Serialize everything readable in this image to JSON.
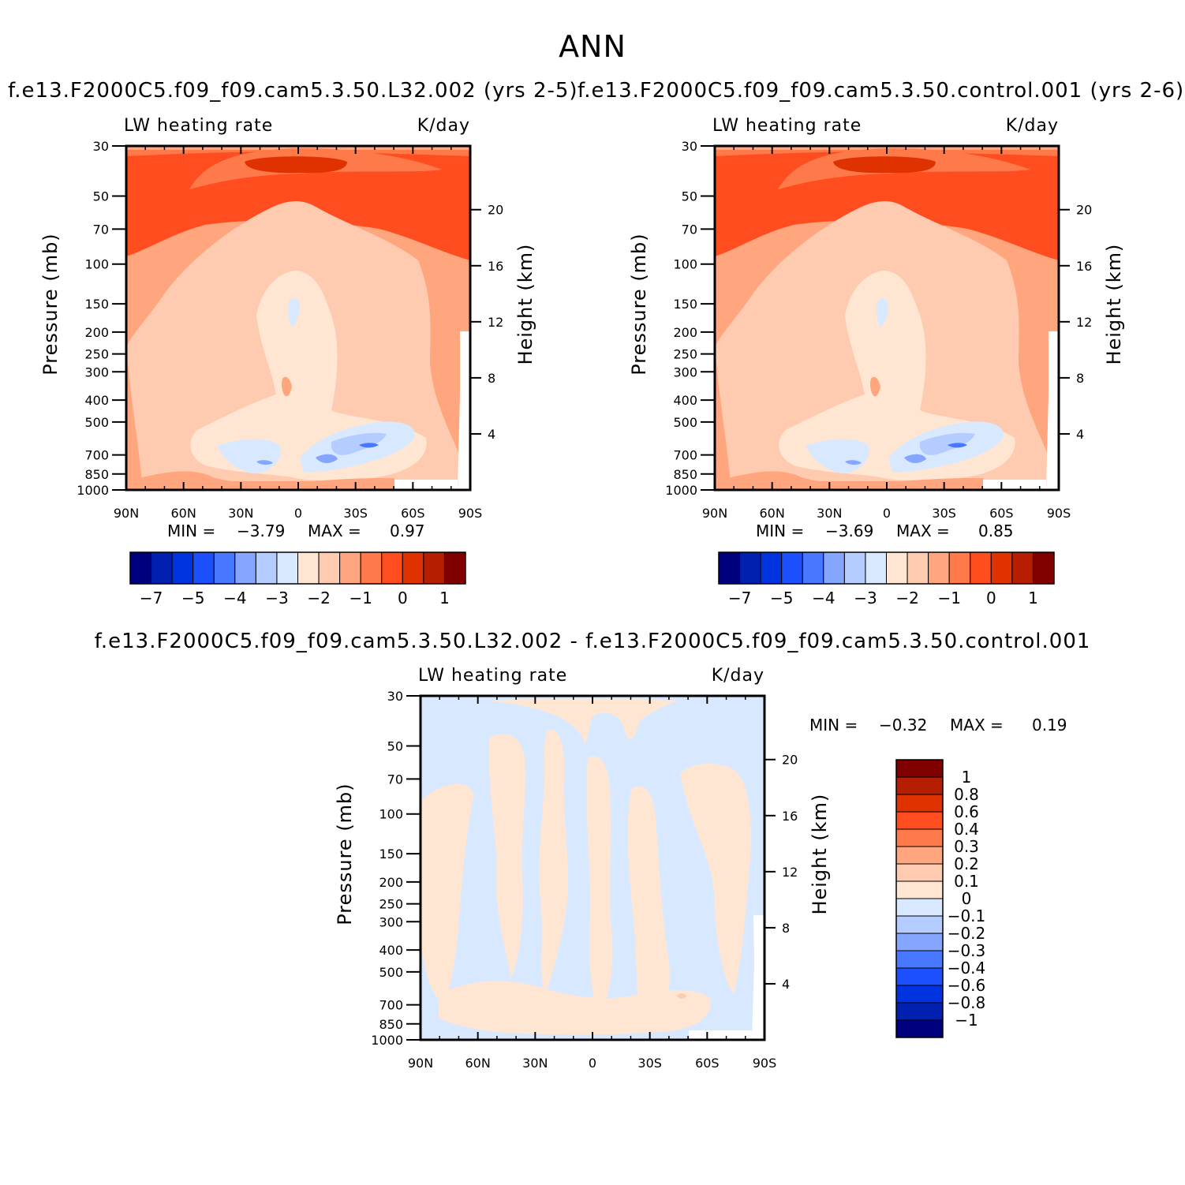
{
  "figure_title": "ANN",
  "panel_titles": {
    "left": "f.e13.F2000C5.f09_f09.cam5.3.50.L32.002  (yrs  2-5)",
    "right": "f.e13.F2000C5.f09_f09.cam5.3.50.control.001  (yrs  2-6)",
    "diff": "f.e13.F2000C5.f09_f09.cam5.3.50.L32.002  -  f.e13.F2000C5.f09_f09.cam5.3.50.control.001"
  },
  "chart_data": [
    {
      "type": "heatmap",
      "title": "f.e13.F2000C5.f09_f09.cam5.3.50.L32.002  (yrs  2-5)",
      "variable_label": "LW  heating  rate",
      "units_label": "K/day",
      "xlabel": "",
      "ylabel": "Pressure  (mb)",
      "y2label": "Height  (km)",
      "x_ticks": [
        "90N",
        "60N",
        "30N",
        "0",
        "30S",
        "60S",
        "90S"
      ],
      "y_ticks": [
        "30",
        "50",
        "70",
        "100",
        "150",
        "200",
        "250",
        "300",
        "400",
        "500",
        "700",
        "850",
        "1000"
      ],
      "y2_ticks": [
        "20",
        "16",
        "12",
        "8",
        "4"
      ],
      "ylim": [
        1000,
        30
      ],
      "y_scale": "log",
      "min_label": "MIN  =",
      "min_value": "-3.79",
      "max_label": "MAX  =",
      "max_value": "0.97",
      "colorbar": {
        "orientation": "horizontal",
        "tick_labels": [
          "-7",
          "-5",
          "-4",
          "-3",
          "-2",
          "-1",
          "0",
          "1"
        ],
        "colors": [
          "#00007f",
          "#0020b0",
          "#0033e0",
          "#1c50ff",
          "#4878ff",
          "#84a6ff",
          "#b4ccff",
          "#d8e9ff",
          "#ffe6d2",
          "#ffcbb0",
          "#ffa67f",
          "#ff7a4a",
          "#ff4d1f",
          "#e03200",
          "#b51e00",
          "#800000"
        ]
      }
    },
    {
      "type": "heatmap",
      "title": "f.e13.F2000C5.f09_f09.cam5.3.50.control.001  (yrs  2-6)",
      "variable_label": "LW  heating  rate",
      "units_label": "K/day",
      "xlabel": "",
      "ylabel": "Pressure  (mb)",
      "y2label": "Height  (km)",
      "x_ticks": [
        "90N",
        "60N",
        "30N",
        "0",
        "30S",
        "60S",
        "90S"
      ],
      "y_ticks": [
        "30",
        "50",
        "70",
        "100",
        "150",
        "200",
        "250",
        "300",
        "400",
        "500",
        "700",
        "850",
        "1000"
      ],
      "y2_ticks": [
        "20",
        "16",
        "12",
        "8",
        "4"
      ],
      "ylim": [
        1000,
        30
      ],
      "y_scale": "log",
      "min_label": "MIN  =",
      "min_value": "-3.69",
      "max_label": "MAX  =",
      "max_value": "0.85",
      "colorbar": {
        "orientation": "horizontal",
        "tick_labels": [
          "-7",
          "-5",
          "-4",
          "-3",
          "-2",
          "-1",
          "0",
          "1"
        ],
        "colors": [
          "#00007f",
          "#0020b0",
          "#0033e0",
          "#1c50ff",
          "#4878ff",
          "#84a6ff",
          "#b4ccff",
          "#d8e9ff",
          "#ffe6d2",
          "#ffcbb0",
          "#ffa67f",
          "#ff7a4a",
          "#ff4d1f",
          "#e03200",
          "#b51e00",
          "#800000"
        ]
      }
    },
    {
      "type": "heatmap",
      "title": "f.e13.F2000C5.f09_f09.cam5.3.50.L32.002  -  f.e13.F2000C5.f09_f09.cam5.3.50.control.001",
      "variable_label": "LW  heating  rate",
      "units_label": "K/day",
      "xlabel": "",
      "ylabel": "Pressure  (mb)",
      "y2label": "Height  (km)",
      "x_ticks": [
        "90N",
        "60N",
        "30N",
        "0",
        "30S",
        "60S",
        "90S"
      ],
      "y_ticks": [
        "30",
        "50",
        "70",
        "100",
        "150",
        "200",
        "250",
        "300",
        "400",
        "500",
        "700",
        "850",
        "1000"
      ],
      "y2_ticks": [
        "20",
        "16",
        "12",
        "8",
        "4"
      ],
      "ylim": [
        1000,
        30
      ],
      "y_scale": "log",
      "min_label": "MIN  =",
      "min_value": "-0.32",
      "max_label": "MAX  =",
      "max_value": "0.19",
      "colorbar": {
        "orientation": "vertical",
        "tick_labels": [
          "1",
          "0.8",
          "0.6",
          "0.4",
          "0.3",
          "0.2",
          "0.1",
          "0",
          "-0.1",
          "-0.2",
          "-0.3",
          "-0.4",
          "-0.6",
          "-0.8",
          "-1"
        ],
        "colors": [
          "#800000",
          "#b51e00",
          "#e03200",
          "#ff4d1f",
          "#ff7a4a",
          "#ffa67f",
          "#ffcbb0",
          "#ffe6d2",
          "#d8e9ff",
          "#b4ccff",
          "#84a6ff",
          "#4878ff",
          "#1c50ff",
          "#0033e0",
          "#0020b0",
          "#00007f"
        ]
      }
    }
  ]
}
